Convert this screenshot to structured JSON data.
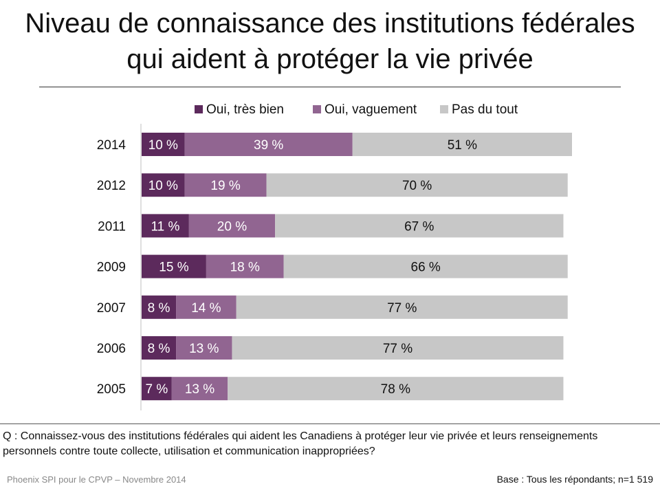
{
  "title": {
    "line1": "Niveau de connaissance des institutions fédérales",
    "line2": "qui aident à protéger la vie privée"
  },
  "chart_data": {
    "type": "bar",
    "orientation": "horizontal",
    "stacked": true,
    "categories": [
      "2014",
      "2012",
      "2011",
      "2009",
      "2007",
      "2006",
      "2005"
    ],
    "series": [
      {
        "name": "Oui, très bien",
        "color": "#5c2a5c",
        "values": [
          10,
          10,
          11,
          15,
          8,
          8,
          7
        ],
        "labels": [
          "10 %",
          "10 %",
          "11 %",
          "15 %",
          "8 %",
          "8 %",
          "7 %"
        ]
      },
      {
        "name": "Oui, vaguement",
        "color": "#916591",
        "values": [
          39,
          19,
          20,
          18,
          14,
          13,
          13
        ],
        "labels": [
          "39 %",
          "19 %",
          "20 %",
          "18 %",
          "14 %",
          "13 %",
          "13 %"
        ]
      },
      {
        "name": "Pas du tout",
        "color": "#c7c7c7",
        "values": [
          51,
          70,
          67,
          66,
          77,
          77,
          78
        ],
        "labels": [
          "51 %",
          "70 %",
          "67 %",
          "66 %",
          "77 %",
          "77 %",
          "78 %"
        ]
      }
    ],
    "legend_position": "top",
    "xlim": [
      0,
      100
    ]
  },
  "question": "Q : Connaissez-vous des institutions fédérales qui aident les Canadiens à protéger leur vie privée et leurs renseignements personnels contre toute collecte, utilisation et communication inappropriées?",
  "footer": {
    "source": "Phoenix SPI pour le CPVP – Novembre  2014",
    "base": "Base : Tous les répondants; n=1 519"
  }
}
